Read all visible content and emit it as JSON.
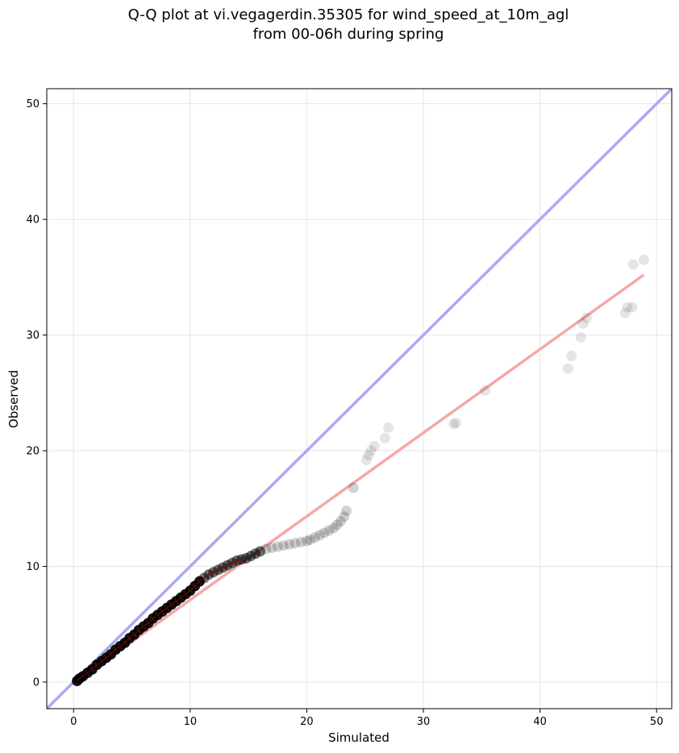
{
  "chart_data": {
    "type": "scatter",
    "title_lines": [
      "Q-Q plot at vi.vegagerdin.35305 for wind_speed_at_10m_agl",
      "from 00-06h during spring"
    ],
    "xlabel": "Simulated",
    "ylabel": "Observed",
    "xlim": [
      -2.3,
      51.3
    ],
    "ylim": [
      -2.3,
      51.3
    ],
    "xticks": [
      0,
      10,
      20,
      30,
      40,
      50
    ],
    "yticks": [
      0,
      10,
      20,
      30,
      40,
      50
    ],
    "grid": true,
    "colors": {
      "points": "#000000",
      "identity_line": "#aaaaf2",
      "fit_line": "#f5a8a8",
      "dense_trace": "#8b0000"
    },
    "identity_line": {
      "x": [
        -2.3,
        51.3
      ],
      "y": [
        -2.3,
        51.3
      ]
    },
    "fit_line": {
      "x": [
        0.3,
        48.9
      ],
      "y": [
        0.1,
        35.2
      ]
    },
    "quantiles": {
      "simulated": [
        0.3,
        0.5,
        0.8,
        1.2,
        1.6,
        2.0,
        2.4,
        2.8,
        3.2,
        3.6,
        4.0,
        4.4,
        4.8,
        5.2,
        5.6,
        6.0,
        6.4,
        6.8,
        7.2,
        7.6,
        8.0,
        8.4,
        8.8,
        9.2,
        9.6,
        10.0,
        10.4,
        10.8,
        11.2,
        11.6,
        12.0,
        12.4,
        12.8,
        13.2,
        13.6,
        14.0,
        14.4,
        14.8,
        15.2,
        15.6,
        16.0,
        16.5,
        17.0,
        17.5,
        18.0,
        18.5,
        19.0,
        19.5,
        20.0,
        20.3,
        20.7,
        21.1,
        21.5,
        21.9,
        22.3,
        22.6,
        22.9,
        23.2,
        23.4,
        24.0,
        25.1,
        25.3,
        25.5,
        25.8,
        26.7,
        27.0,
        32.6,
        32.8,
        35.3,
        42.4,
        42.7,
        43.5,
        43.7,
        44.0,
        47.3,
        47.5,
        47.9,
        48.0,
        48.9
      ],
      "observed": [
        0.1,
        0.3,
        0.5,
        0.8,
        1.1,
        1.5,
        1.8,
        2.1,
        2.4,
        2.8,
        3.1,
        3.4,
        3.8,
        4.1,
        4.5,
        4.8,
        5.1,
        5.5,
        5.8,
        6.1,
        6.4,
        6.7,
        7.0,
        7.3,
        7.6,
        7.9,
        8.3,
        8.7,
        9.0,
        9.3,
        9.5,
        9.7,
        9.9,
        10.1,
        10.3,
        10.5,
        10.6,
        10.7,
        10.9,
        11.1,
        11.3,
        11.5,
        11.6,
        11.7,
        11.8,
        11.9,
        12.0,
        12.1,
        12.2,
        12.3,
        12.5,
        12.7,
        12.9,
        13.1,
        13.3,
        13.6,
        13.9,
        14.3,
        14.8,
        16.8,
        19.2,
        19.6,
        20.0,
        20.4,
        21.1,
        22.0,
        22.3,
        22.4,
        25.2,
        27.1,
        28.2,
        29.8,
        31.0,
        31.5,
        31.9,
        32.4,
        32.4,
        36.1,
        36.5
      ]
    }
  }
}
